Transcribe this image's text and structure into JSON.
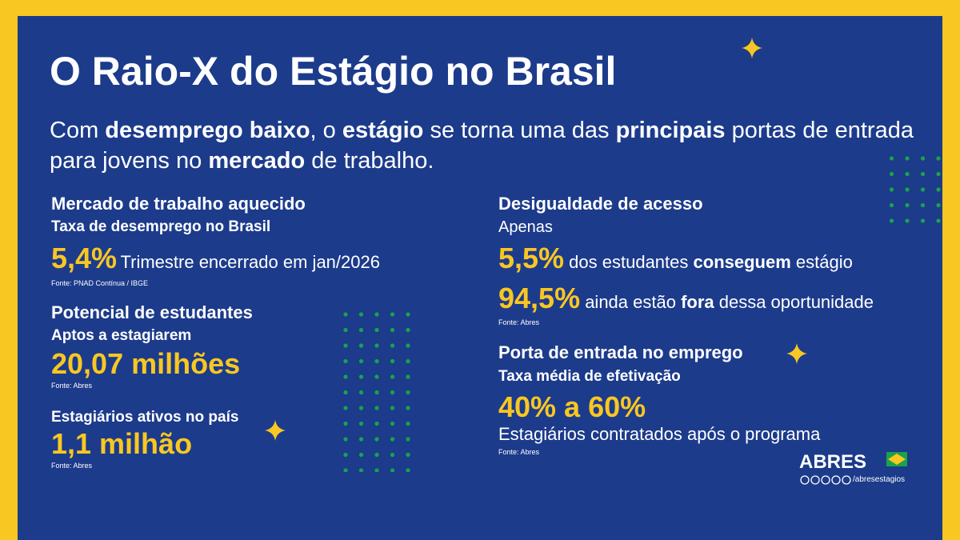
{
  "title": "O Raio-X do Estágio no Brasil",
  "subtitle": [
    "Com ",
    "desemprego baixo",
    ", o ",
    "estágio",
    " se torna uma das ",
    "principais",
    " portas de entrada para jovens no ",
    "mercado",
    " de trabalho."
  ],
  "left": [
    {
      "heading": "Mercado de trabalho aquecido",
      "label": "Taxa de desemprego no Brasil",
      "stat": "5,4%",
      "note": "Trimestre encerrado em jan/2026",
      "source": "Fonte: PNAD Contínua / IBGE"
    },
    {
      "heading": "Potencial de estudantes",
      "label": "Aptos a estagiarem",
      "stat": "20,07 milhões",
      "source": "Fonte: Abres"
    },
    {
      "heading": "Estagiários ativos no país",
      "stat": "1,1 milhão",
      "source": "Fonte: Abres"
    }
  ],
  "right": [
    {
      "heading": "Desigualdade de acesso",
      "label": "Apenas",
      "lines": [
        [
          "5,5%",
          " dos estudantes ",
          "conseguem",
          " estágio"
        ],
        [
          "94,5%",
          " ainda estão ",
          "fora",
          " dessa oportunidade"
        ]
      ],
      "source": "Fonte: Abres"
    },
    {
      "heading": "Porta de entrada no emprego",
      "label": "Taxa média de efetivação",
      "stat": "40% a 60%",
      "note": "Estagiários contratados após o programa",
      "source": "Fonte: Abres"
    }
  ],
  "footer": {
    "brand": "ABRES",
    "handle": "/abresestagios"
  }
}
